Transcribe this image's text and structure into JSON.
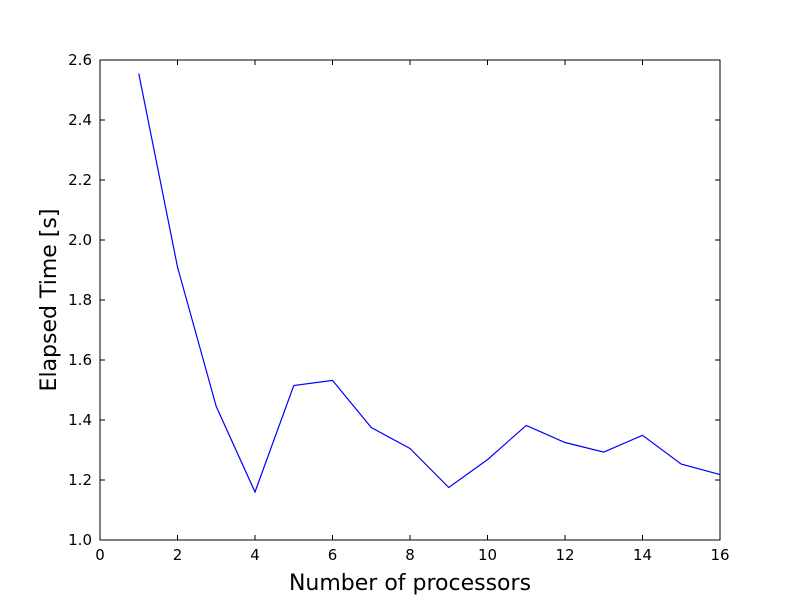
{
  "chart_data": {
    "type": "line",
    "title": "",
    "xlabel": "Number of processors",
    "ylabel": "Elapsed Time [s]",
    "xlim": [
      0,
      16
    ],
    "ylim": [
      1.0,
      2.6
    ],
    "xticks": [
      0,
      2,
      4,
      6,
      8,
      10,
      12,
      14,
      16
    ],
    "yticks": [
      1.0,
      1.2,
      1.4,
      1.6,
      1.8,
      2.0,
      2.2,
      2.4,
      2.6
    ],
    "xtick_labels": [
      "0",
      "2",
      "4",
      "6",
      "8",
      "10",
      "12",
      "14",
      "16"
    ],
    "ytick_labels": [
      "1.0",
      "1.2",
      "1.4",
      "1.6",
      "1.8",
      "2.0",
      "2.2",
      "2.4",
      "2.6"
    ],
    "grid": false,
    "legend": null,
    "series": [
      {
        "color": "#0000ff",
        "x": [
          1,
          2,
          3,
          4,
          5,
          6,
          7,
          8,
          9,
          10,
          11,
          12,
          13,
          14,
          15,
          16
        ],
        "y": [
          2.555,
          1.91,
          1.445,
          1.16,
          1.515,
          1.532,
          1.375,
          1.305,
          1.175,
          1.268,
          1.382,
          1.325,
          1.293,
          1.349,
          1.253,
          1.218
        ]
      }
    ]
  }
}
